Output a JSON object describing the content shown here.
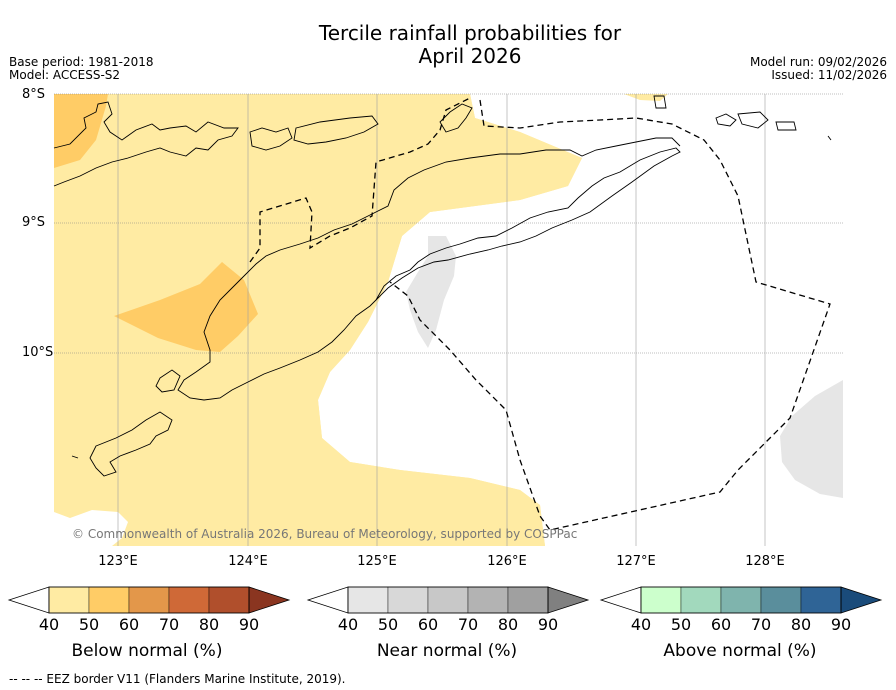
{
  "title_line1": "Tercile rainfall probabilities for",
  "title_line2": "April 2026",
  "meta_left": {
    "base_period": "Base period: 1981-2018",
    "model": "Model: ACCESS-S2"
  },
  "meta_right": {
    "model_run": "Model run: 09/02/2026",
    "issued": "Issued: 11/02/2026"
  },
  "lat_labels": [
    "8°S",
    "9°S",
    "10°S"
  ],
  "lon_labels": [
    "123°E",
    "124°E",
    "125°E",
    "126°E",
    "127°E",
    "128°E"
  ],
  "copyright": "© Commonwealth of Australia 2026, Bureau of Meteorology, supported by COSPPac",
  "colorbars": [
    {
      "label": "Below normal (%)",
      "colors": [
        "#ffeba3",
        "#ffcc66",
        "#e3974a",
        "#cf6937",
        "#b04f2c",
        "#8a3520"
      ]
    },
    {
      "label": "Near normal (%)",
      "colors": [
        "#e6e6e6",
        "#d8d8d8",
        "#c8c8c8",
        "#b3b3b3",
        "#a0a0a0",
        "#808080"
      ]
    },
    {
      "label": "Above normal (%)",
      "colors": [
        "#ccffcc",
        "#a2d9bd",
        "#7fb4ad",
        "#5a8e9c",
        "#2f6496",
        "#1a4b7a"
      ]
    }
  ],
  "ticks": [
    "40",
    "50",
    "60",
    "70",
    "80",
    "90"
  ],
  "footer": "--  --  -- EEZ border V11 (Flanders Marine Institute, 2019).",
  "colors": {
    "grid": "#808080",
    "coast": "#000000"
  }
}
